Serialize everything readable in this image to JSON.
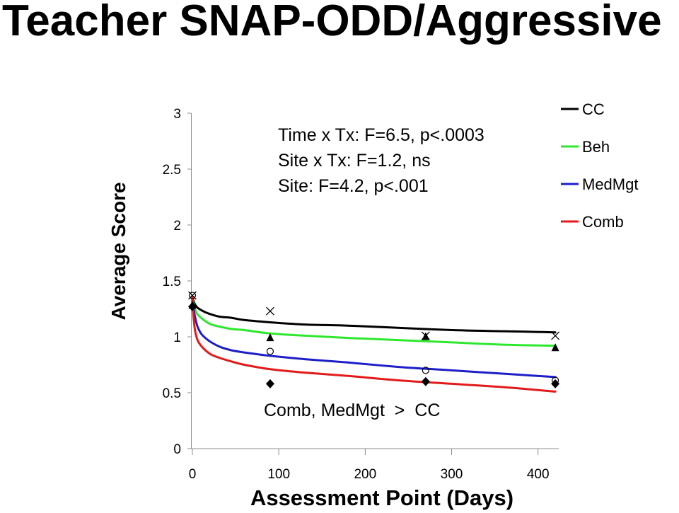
{
  "chart_data": {
    "type": "line",
    "title": "Teacher SNAP-ODD/Aggressive",
    "xlabel": "Assessment Point (Days)",
    "ylabel": "Average Score",
    "xlim": [
      0,
      424
    ],
    "ylim": [
      0,
      3
    ],
    "x_ticks": [
      0,
      100,
      200,
      300,
      400
    ],
    "y_ticks": [
      0,
      0.5,
      1,
      1.5,
      2,
      2.5,
      3
    ],
    "grid": false,
    "legend_position": "top-right",
    "marker_color": "#000000",
    "axis_color": "#8c8c8c",
    "annotations": [
      "Time x Tx: F=6.5, p<.0003",
      "Site x Tx: F=1.2, ns",
      "Site: F=4.2, p<.001",
      "Comb, MedMgt  >  CC"
    ],
    "observed_x": [
      0,
      90,
      270,
      420
    ],
    "fit_x": [
      0,
      1,
      3,
      6,
      10,
      15,
      22,
      32,
      45,
      60,
      90,
      130,
      180,
      240,
      300,
      360,
      420
    ],
    "series": [
      {
        "name": "CC",
        "color": "#000000",
        "marker": "cross",
        "observed": [
          1.37,
          1.23,
          1.01,
          1.01
        ],
        "fit": [
          1.36,
          1.33,
          1.29,
          1.26,
          1.24,
          1.22,
          1.2,
          1.18,
          1.17,
          1.15,
          1.13,
          1.11,
          1.1,
          1.08,
          1.06,
          1.05,
          1.04
        ]
      },
      {
        "name": "Beh",
        "color": "#2ee82e",
        "marker": "triangle",
        "observed": [
          1.28,
          0.99,
          1.0,
          0.9
        ],
        "fit": [
          1.36,
          1.31,
          1.25,
          1.2,
          1.17,
          1.14,
          1.11,
          1.09,
          1.07,
          1.06,
          1.03,
          1.01,
          0.99,
          0.97,
          0.95,
          0.93,
          0.92
        ]
      },
      {
        "name": "MedMgt",
        "color": "#1e1ec8",
        "marker": "circle",
        "observed": [
          1.37,
          0.87,
          0.7,
          0.61
        ],
        "fit": [
          1.36,
          1.28,
          1.18,
          1.09,
          1.03,
          0.99,
          0.95,
          0.91,
          0.88,
          0.86,
          0.83,
          0.8,
          0.77,
          0.73,
          0.7,
          0.67,
          0.64
        ]
      },
      {
        "name": "Comb",
        "color": "#e41a1a",
        "marker": "diamond",
        "observed": [
          1.27,
          0.58,
          0.6,
          0.58
        ],
        "fit": [
          1.36,
          1.21,
          1.06,
          0.97,
          0.92,
          0.88,
          0.84,
          0.81,
          0.78,
          0.75,
          0.71,
          0.68,
          0.65,
          0.61,
          0.58,
          0.55,
          0.51
        ]
      }
    ]
  }
}
